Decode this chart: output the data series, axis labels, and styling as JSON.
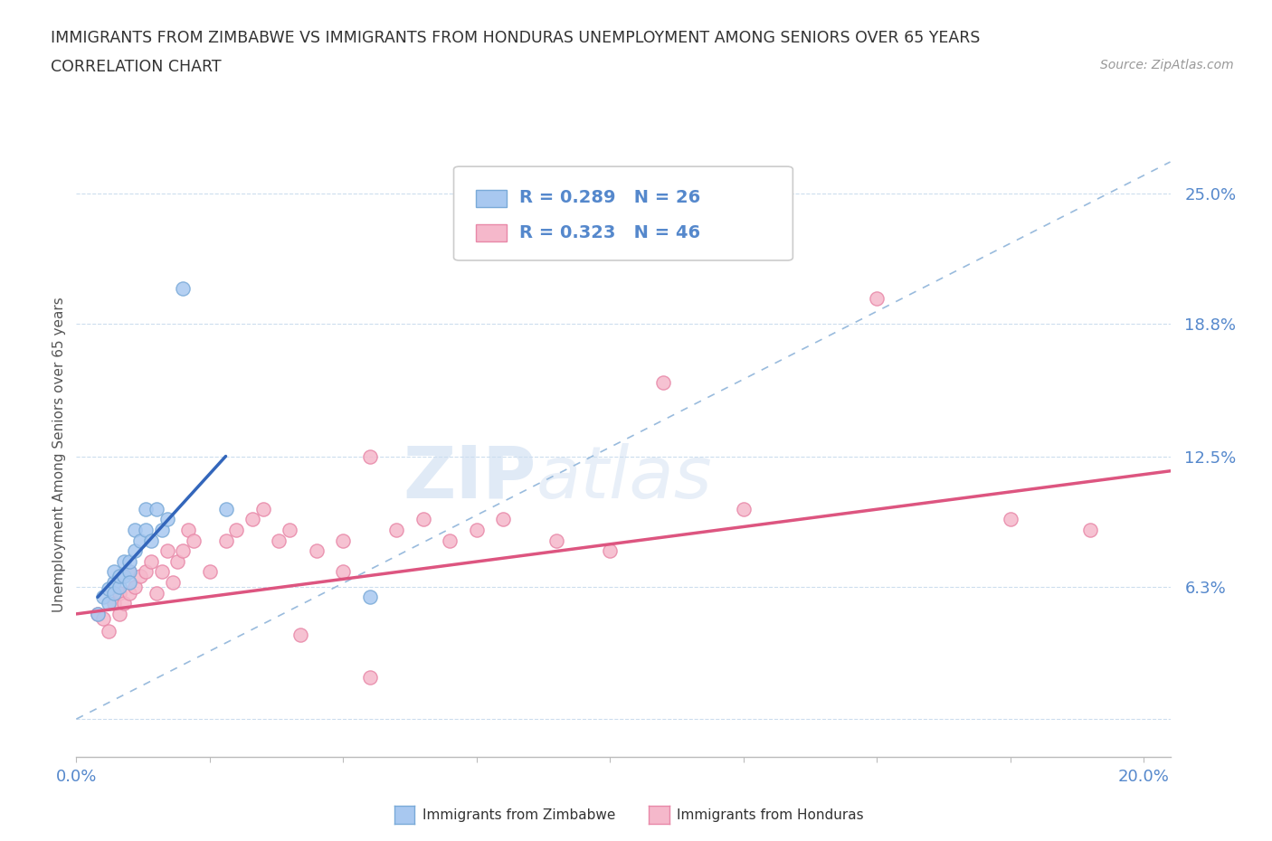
{
  "title_line1": "IMMIGRANTS FROM ZIMBABWE VS IMMIGRANTS FROM HONDURAS UNEMPLOYMENT AMONG SENIORS OVER 65 YEARS",
  "title_line2": "CORRELATION CHART",
  "source": "Source: ZipAtlas.com",
  "ylabel": "Unemployment Among Seniors over 65 years",
  "xlim": [
    0.0,
    0.205
  ],
  "ylim": [
    -0.018,
    0.27
  ],
  "yticks": [
    0.0,
    0.063,
    0.125,
    0.188,
    0.25
  ],
  "ytick_labels": [
    "",
    "6.3%",
    "12.5%",
    "18.8%",
    "25.0%"
  ],
  "xticks": [
    0.0,
    0.025,
    0.05,
    0.075,
    0.1,
    0.125,
    0.15,
    0.175,
    0.2
  ],
  "xtick_labels": [
    "0.0%",
    "",
    "",
    "",
    "",
    "",
    "",
    "",
    "20.0%"
  ],
  "zimbabwe_color": "#a8c8f0",
  "zimbabwe_edge": "#7aaad8",
  "honduras_color": "#f5b8cb",
  "honduras_edge": "#e888a8",
  "zimbabwe_R": "R = 0.289",
  "zimbabwe_N": "N = 26",
  "honduras_R": "R = 0.323",
  "honduras_N": "N = 46",
  "zimbabwe_scatter_x": [
    0.004,
    0.005,
    0.006,
    0.006,
    0.007,
    0.007,
    0.007,
    0.008,
    0.008,
    0.009,
    0.009,
    0.01,
    0.01,
    0.01,
    0.011,
    0.011,
    0.012,
    0.013,
    0.013,
    0.014,
    0.015,
    0.016,
    0.017,
    0.02,
    0.028,
    0.055
  ],
  "zimbabwe_scatter_y": [
    0.05,
    0.058,
    0.062,
    0.055,
    0.065,
    0.06,
    0.07,
    0.063,
    0.068,
    0.068,
    0.075,
    0.07,
    0.075,
    0.065,
    0.08,
    0.09,
    0.085,
    0.09,
    0.1,
    0.085,
    0.1,
    0.09,
    0.095,
    0.205,
    0.1,
    0.058
  ],
  "honduras_scatter_x": [
    0.004,
    0.005,
    0.006,
    0.007,
    0.008,
    0.008,
    0.009,
    0.01,
    0.01,
    0.011,
    0.012,
    0.013,
    0.014,
    0.015,
    0.016,
    0.017,
    0.018,
    0.019,
    0.02,
    0.021,
    0.022,
    0.025,
    0.028,
    0.03,
    0.033,
    0.035,
    0.038,
    0.04,
    0.042,
    0.045,
    0.05,
    0.05,
    0.055,
    0.06,
    0.065,
    0.07,
    0.075,
    0.08,
    0.09,
    0.1,
    0.11,
    0.125,
    0.15,
    0.175,
    0.19,
    0.055
  ],
  "honduras_scatter_y": [
    0.05,
    0.048,
    0.042,
    0.055,
    0.05,
    0.06,
    0.055,
    0.06,
    0.07,
    0.063,
    0.068,
    0.07,
    0.075,
    0.06,
    0.07,
    0.08,
    0.065,
    0.075,
    0.08,
    0.09,
    0.085,
    0.07,
    0.085,
    0.09,
    0.095,
    0.1,
    0.085,
    0.09,
    0.04,
    0.08,
    0.085,
    0.07,
    0.02,
    0.09,
    0.095,
    0.085,
    0.09,
    0.095,
    0.085,
    0.08,
    0.16,
    0.1,
    0.2,
    0.095,
    0.09,
    0.125
  ],
  "zimbabwe_line_x": [
    0.004,
    0.028
  ],
  "zimbabwe_line_y": [
    0.058,
    0.125
  ],
  "honduras_line_x": [
    0.0,
    0.205
  ],
  "honduras_line_y": [
    0.05,
    0.118
  ],
  "dashed_line_x": [
    0.0,
    0.205
  ],
  "dashed_line_y": [
    0.0,
    0.265
  ],
  "background_color": "#ffffff",
  "grid_color": "#ccddee",
  "tick_color": "#5588cc",
  "title_color": "#333333",
  "line_blue": "#3366bb",
  "line_pink": "#dd5580",
  "dashed_color": "#99bbdd"
}
